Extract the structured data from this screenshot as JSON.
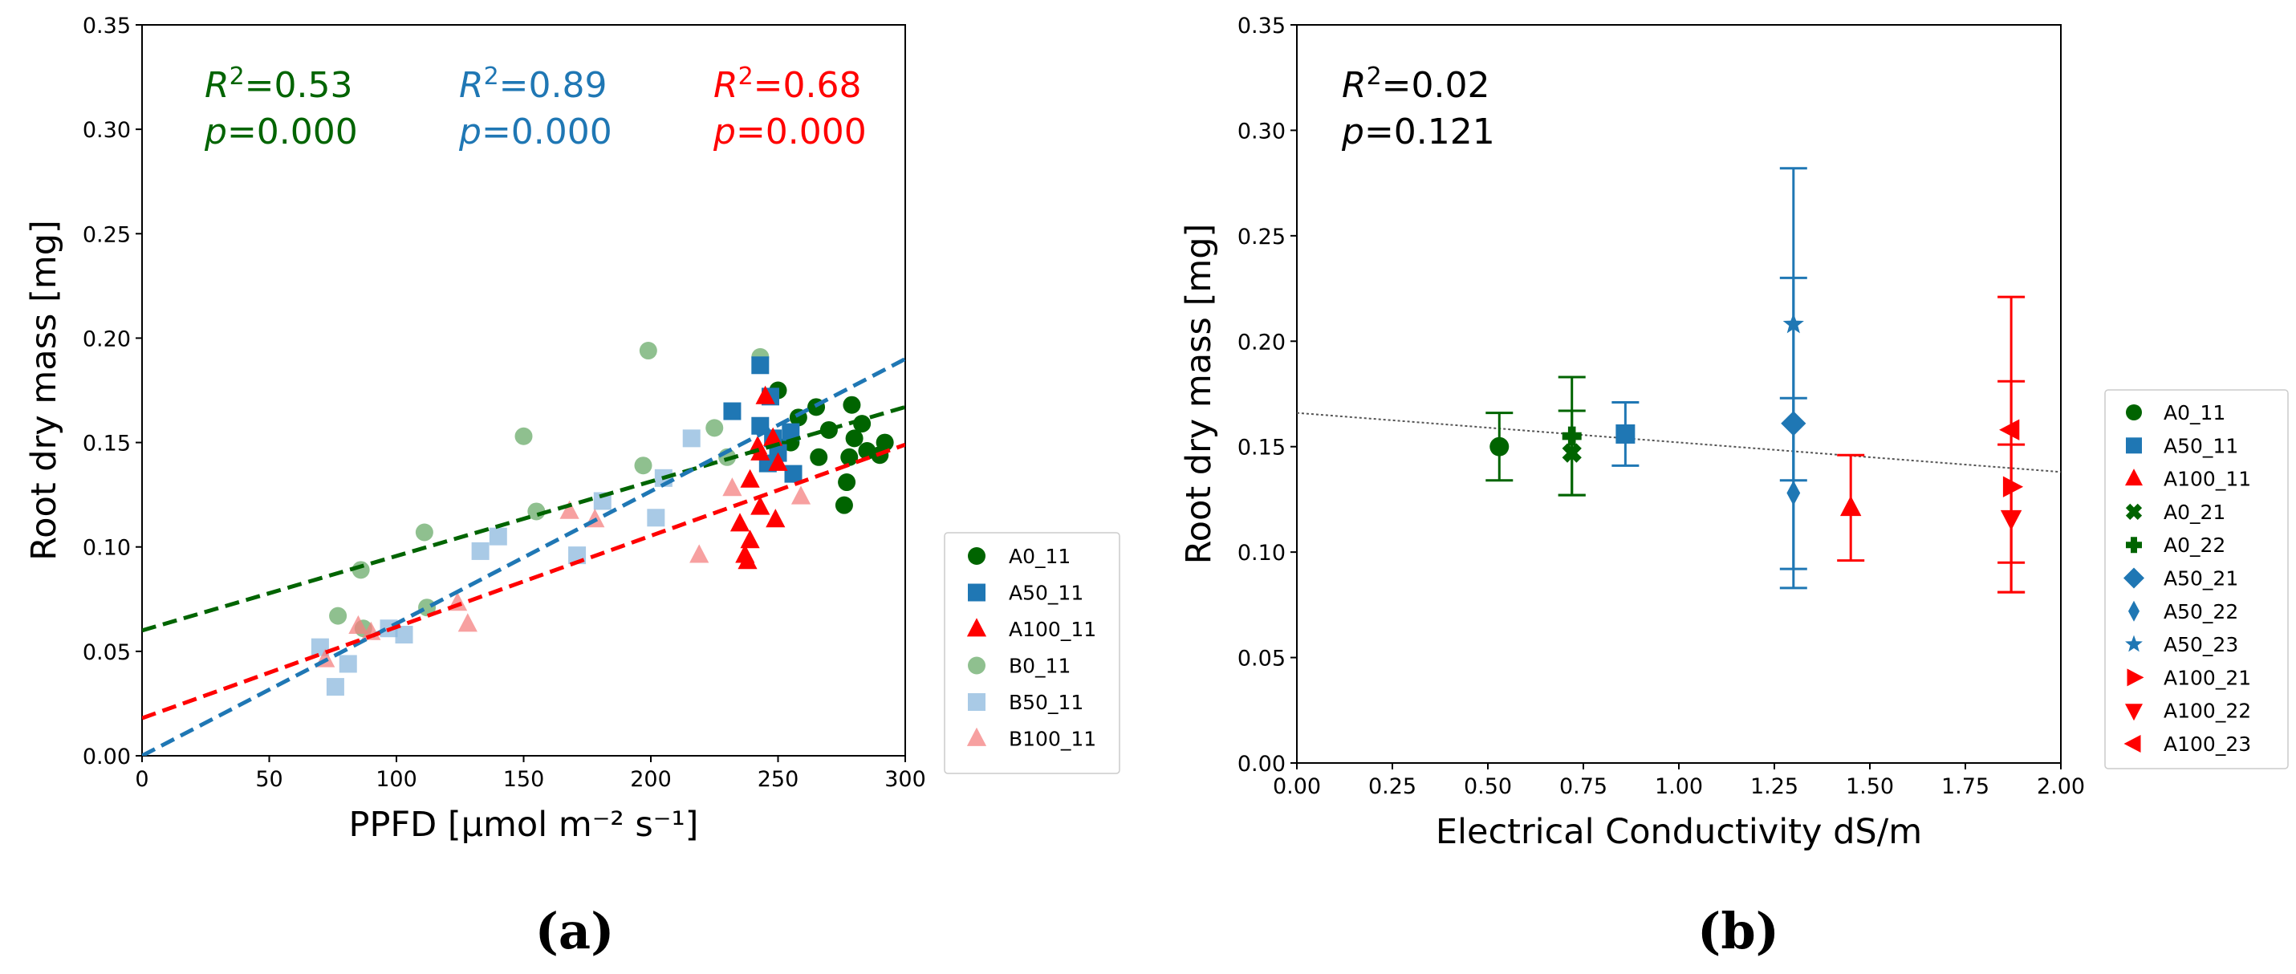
{
  "colors": {
    "green": "#006400",
    "blue": "#1f77b4",
    "red": "#ff0000",
    "black": "#000000",
    "light_green": "#6aab6a",
    "light_blue": "#8cb8de",
    "light_red": "#f48080"
  },
  "panels": {
    "a": "(a)",
    "b": "(b)"
  },
  "chart_data": [
    {
      "type": "scatter",
      "panel": "(a)",
      "xlabel": "PPFD [μmol m⁻² s⁻¹]",
      "ylabel": "Root dry mass [mg]",
      "xlim": [
        0,
        300
      ],
      "ylim": [
        0,
        0.35
      ],
      "xticks": [
        "0",
        "50",
        "100",
        "150",
        "200",
        "250",
        "300"
      ],
      "yticks": [
        "0.00",
        "0.05",
        "0.10",
        "0.15",
        "0.20",
        "0.25",
        "0.30",
        "0.35"
      ],
      "legend_position": "outside right, bottom",
      "annotations": [
        {
          "r2": "=0.53",
          "p": "=0.000",
          "color": "green"
        },
        {
          "r2": "=0.89",
          "p": "=0.000",
          "color": "blue"
        },
        {
          "r2": "=0.68",
          "p": "=0.000",
          "color": "red"
        }
      ],
      "trend_lines": [
        {
          "color": "green",
          "x": [
            0,
            300
          ],
          "y": [
            0.06,
            0.167
          ]
        },
        {
          "color": "blue",
          "x": [
            0,
            300
          ],
          "y": [
            0.0,
            0.19
          ]
        },
        {
          "color": "red",
          "x": [
            0,
            300
          ],
          "y": [
            0.018,
            0.149
          ]
        }
      ],
      "series": [
        {
          "name": "A0_11",
          "marker": "circle",
          "color": "green",
          "alpha": 1,
          "points": [
            [
              250,
              0.175
            ],
            [
              265,
              0.167
            ],
            [
              279,
              0.168
            ],
            [
              258,
              0.162
            ],
            [
              283,
              0.159
            ],
            [
              270,
              0.156
            ],
            [
              292,
              0.15
            ],
            [
              280,
              0.152
            ],
            [
              278,
              0.143
            ],
            [
              266,
              0.143
            ],
            [
              285,
              0.146
            ],
            [
              290,
              0.144
            ],
            [
              277,
              0.131
            ],
            [
              276,
              0.12
            ],
            [
              250,
              0.148
            ],
            [
              255,
              0.15
            ]
          ]
        },
        {
          "name": "A50_11",
          "marker": "square",
          "color": "blue",
          "alpha": 1,
          "points": [
            [
              243,
              0.187
            ],
            [
              232,
              0.165
            ],
            [
              247,
              0.172
            ],
            [
              243,
              0.158
            ],
            [
              255,
              0.155
            ],
            [
              248,
              0.152
            ],
            [
              250,
              0.145
            ],
            [
              246,
              0.14
            ],
            [
              256,
              0.135
            ]
          ]
        },
        {
          "name": "A100_11",
          "marker": "triangle",
          "color": "red",
          "alpha": 1,
          "points": [
            [
              245,
              0.172
            ],
            [
              248,
              0.152
            ],
            [
              239,
              0.132
            ],
            [
              243,
              0.145
            ],
            [
              250,
              0.14
            ],
            [
              235,
              0.111
            ],
            [
              249,
              0.113
            ],
            [
              243,
              0.119
            ],
            [
              239,
              0.103
            ],
            [
              237,
              0.096
            ],
            [
              238,
              0.093
            ],
            [
              242,
              0.148
            ]
          ]
        },
        {
          "name": "B0_11",
          "marker": "circle",
          "color": "light_green",
          "alpha": 0.75,
          "points": [
            [
              199,
              0.194
            ],
            [
              243,
              0.191
            ],
            [
              150,
              0.153
            ],
            [
              197,
              0.139
            ],
            [
              225,
              0.157
            ],
            [
              230,
              0.143
            ],
            [
              155,
              0.117
            ],
            [
              111,
              0.107
            ],
            [
              86,
              0.089
            ],
            [
              77,
              0.067
            ],
            [
              112,
              0.071
            ],
            [
              87,
              0.061
            ]
          ]
        },
        {
          "name": "B50_11",
          "marker": "square",
          "color": "light_blue",
          "alpha": 0.75,
          "points": [
            [
              216,
              0.152
            ],
            [
              205,
              0.133
            ],
            [
              181,
              0.122
            ],
            [
              140,
              0.105
            ],
            [
              133,
              0.098
            ],
            [
              171,
              0.096
            ],
            [
              202,
              0.114
            ],
            [
              97,
              0.061
            ],
            [
              103,
              0.058
            ],
            [
              81,
              0.044
            ],
            [
              70,
              0.052
            ],
            [
              76,
              0.033
            ]
          ]
        },
        {
          "name": "B100_11",
          "marker": "triangle",
          "color": "light_red",
          "alpha": 0.75,
          "points": [
            [
              232,
              0.128
            ],
            [
              259,
              0.124
            ],
            [
              168,
              0.117
            ],
            [
              178,
              0.113
            ],
            [
              219,
              0.096
            ],
            [
              124,
              0.073
            ],
            [
              128,
              0.063
            ],
            [
              85,
              0.062
            ],
            [
              90,
              0.059
            ],
            [
              72,
              0.046
            ]
          ]
        }
      ]
    },
    {
      "type": "scatter",
      "panel": "(b)",
      "xlabel": "Electrical Conductivity dS/m",
      "ylabel": "Root dry mass [mg]",
      "xlim": [
        0,
        2.0
      ],
      "ylim": [
        0,
        0.35
      ],
      "xticks": [
        "0.00",
        "0.25",
        "0.50",
        "0.75",
        "1.00",
        "1.25",
        "1.50",
        "1.75",
        "2.00"
      ],
      "yticks": [
        "0.00",
        "0.05",
        "0.10",
        "0.15",
        "0.20",
        "0.25",
        "0.30",
        "0.35"
      ],
      "legend_position": "outside right",
      "annotations": [
        {
          "r2": "=0.02",
          "p": "=0.121",
          "color": "black"
        }
      ],
      "trend_lines": [
        {
          "color": "black",
          "style": "dotted",
          "x": [
            0,
            2.0
          ],
          "y": [
            0.166,
            0.138
          ]
        }
      ],
      "series": [
        {
          "name": "A0_11",
          "marker": "circle",
          "color": "green",
          "x": 0.53,
          "y": 0.15,
          "err": 0.016
        },
        {
          "name": "A50_11",
          "marker": "square",
          "color": "blue",
          "x": 0.86,
          "y": 0.156,
          "err": 0.015
        },
        {
          "name": "A100_11",
          "marker": "triangle",
          "color": "red",
          "x": 1.45,
          "y": 0.121,
          "err": 0.025
        },
        {
          "name": "A0_21",
          "marker": "x",
          "color": "green",
          "x": 0.72,
          "y": 0.147,
          "err": 0.02
        },
        {
          "name": "A0_22",
          "marker": "plus",
          "color": "green",
          "x": 0.72,
          "y": 0.155,
          "err": 0.028
        },
        {
          "name": "A50_21",
          "marker": "diamond",
          "color": "blue",
          "x": 1.3,
          "y": 0.161,
          "err": 0.069
        },
        {
          "name": "A50_22",
          "marker": "thin_diamond",
          "color": "blue",
          "x": 1.3,
          "y": 0.128,
          "err": 0.045
        },
        {
          "name": "A50_23",
          "marker": "star",
          "color": "blue",
          "x": 1.3,
          "y": 0.208,
          "err": 0.074
        },
        {
          "name": "A100_21",
          "marker": "triangle_right",
          "color": "red",
          "x": 1.87,
          "y": 0.131,
          "err": 0.05
        },
        {
          "name": "A100_22",
          "marker": "triangle_down",
          "color": "red",
          "x": 1.87,
          "y": 0.116,
          "err": 0.035
        },
        {
          "name": "A100_23",
          "marker": "triangle_left",
          "color": "red",
          "x": 1.87,
          "y": 0.158,
          "err": 0.063
        }
      ]
    }
  ]
}
